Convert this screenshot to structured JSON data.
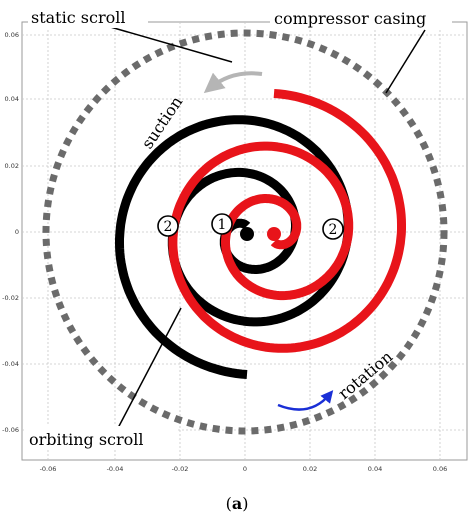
{
  "diagram": {
    "labels": {
      "static_scroll": "static scroll",
      "compressor_casing": "compressor casing",
      "suction": "suction",
      "orbiting_scroll": "orbiting scroll",
      "rotation": "rotation"
    },
    "zones": {
      "inner": "1",
      "outer": "2"
    },
    "caption": {
      "open": "(",
      "letter": "a",
      "close": ")"
    },
    "x_ticks": [
      "-0.06",
      "-0.04",
      "-0.02",
      "0",
      "0.02",
      "0.04",
      "0.06"
    ],
    "y_ticks": [
      "0.06",
      "0.04",
      "0.02",
      "0",
      "-0.02",
      "-0.04",
      "-0.06"
    ],
    "colors": {
      "static_scroll": "#000000",
      "orbiting_scroll": "#e8141a",
      "casing": "#6b6b6b",
      "suction_arrow": "#b5b5b5",
      "rotation_arrow": "#1a2fd6",
      "grid": "#c8c8c8"
    }
  }
}
